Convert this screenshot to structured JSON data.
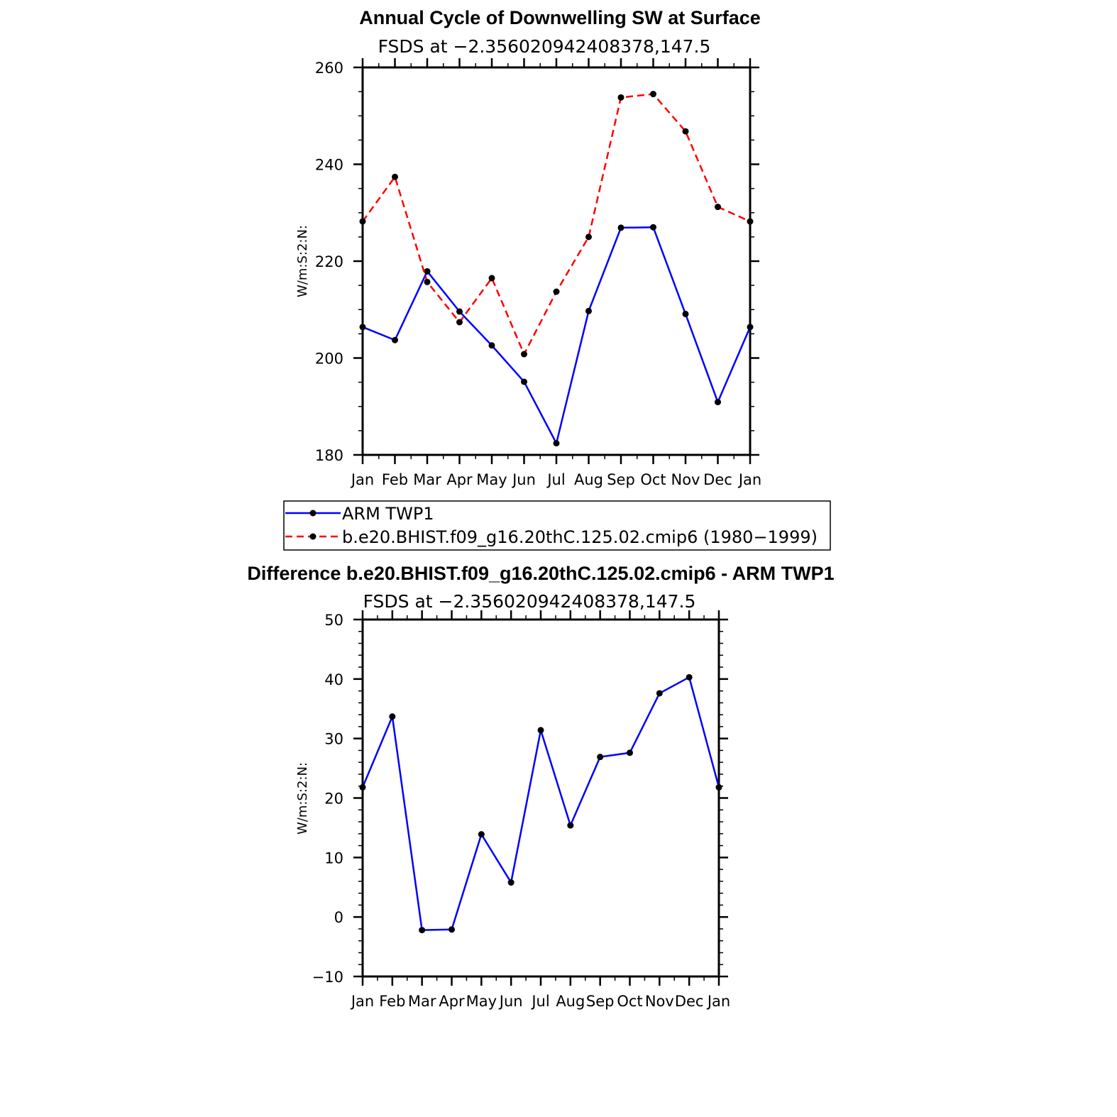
{
  "chart_data": [
    {
      "type": "line",
      "title": "Annual Cycle of Downwelling SW at Surface",
      "subtitle": "FSDS at −2.356020942408378,147.5",
      "ylabel": "W/m:S:2:N:",
      "xlabel": "",
      "categories": [
        "Jan",
        "Feb",
        "Mar",
        "Apr",
        "May",
        "Jun",
        "Jul",
        "Aug",
        "Sep",
        "Oct",
        "Nov",
        "Dec",
        "Jan"
      ],
      "ylim": [
        180,
        260
      ],
      "yticks": [
        180,
        200,
        220,
        240,
        260
      ],
      "grid": false,
      "legend_position": "bottom",
      "series": [
        {
          "name": "ARM TWP1",
          "color": "#0000ff",
          "dash": "solid",
          "values": [
            206.4,
            203.7,
            217.9,
            209.6,
            202.6,
            195.1,
            182.4,
            209.7,
            226.9,
            227.0,
            209.1,
            190.9,
            206.4
          ]
        },
        {
          "name": "b.e20.BHIST.f09_g16.20thC.125.02.cmip6 (1980−1999)",
          "color": "#ff0000",
          "dash": "dashed",
          "values": [
            228.2,
            237.4,
            215.7,
            207.4,
            216.5,
            200.8,
            213.7,
            225.0,
            253.8,
            254.5,
            246.8,
            231.2,
            228.2
          ]
        }
      ]
    },
    {
      "type": "line",
      "title": "Difference b.e20.BHIST.f09_g16.20thC.125.02.cmip6 - ARM TWP1",
      "subtitle": "FSDS at −2.356020942408378,147.5",
      "ylabel": "W/m:S:2:N:",
      "xlabel": "",
      "categories": [
        "Jan",
        "Feb",
        "Mar",
        "Apr",
        "May",
        "Jun",
        "Jul",
        "Aug",
        "Sep",
        "Oct",
        "Nov",
        "Dec",
        "Jan"
      ],
      "ylim": [
        -10,
        50
      ],
      "yticks": [
        -10,
        0,
        10,
        20,
        30,
        40,
        50
      ],
      "grid": false,
      "series": [
        {
          "color": "#0000ff",
          "dash": "solid",
          "values": [
            21.8,
            33.7,
            -2.2,
            -2.1,
            13.9,
            5.8,
            31.4,
            15.4,
            26.9,
            27.6,
            37.6,
            40.3,
            21.8
          ]
        }
      ]
    }
  ]
}
